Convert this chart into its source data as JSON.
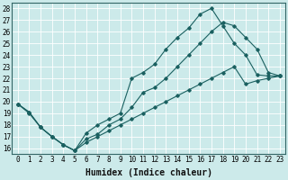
{
  "background_color": "#cceaea",
  "grid_color": "#ffffff",
  "line_color": "#1a6060",
  "xlabel": "Humidex (Indice chaleur)",
  "xlabel_fontsize": 7,
  "tick_fontsize": 5.5,
  "xlim": [
    -0.5,
    23.5
  ],
  "ylim": [
    15.5,
    28.5
  ],
  "xticks": [
    0,
    1,
    2,
    3,
    4,
    5,
    6,
    7,
    8,
    9,
    10,
    11,
    12,
    13,
    14,
    15,
    16,
    17,
    18,
    19,
    20,
    21,
    22,
    23
  ],
  "yticks": [
    16,
    17,
    18,
    19,
    20,
    21,
    22,
    23,
    24,
    25,
    26,
    27,
    28
  ],
  "line1_x": [
    0,
    1,
    2,
    3,
    4,
    5,
    6,
    7,
    8,
    9,
    10,
    11,
    12,
    13,
    14,
    15,
    16,
    17,
    18,
    19,
    20,
    21,
    22,
    23
  ],
  "line1_y": [
    19.8,
    19.1,
    17.8,
    17.0,
    16.3,
    15.8,
    17.3,
    18.0,
    18.5,
    19.0,
    22.0,
    22.5,
    23.2,
    24.5,
    25.5,
    26.3,
    27.5,
    28.0,
    26.5,
    25.0,
    24.0,
    22.3,
    22.2,
    22.2
  ],
  "line2_x": [
    0,
    1,
    2,
    3,
    4,
    5,
    6,
    7,
    8,
    9,
    10,
    11,
    12,
    13,
    14,
    15,
    16,
    17,
    18,
    19,
    20,
    21,
    22,
    23
  ],
  "line2_y": [
    19.8,
    19.1,
    17.8,
    17.0,
    16.3,
    15.8,
    16.8,
    17.2,
    18.0,
    18.5,
    19.5,
    20.8,
    21.2,
    22.0,
    23.0,
    24.0,
    25.0,
    26.0,
    26.8,
    26.5,
    25.5,
    24.5,
    22.5,
    22.2
  ],
  "line3_x": [
    0,
    1,
    2,
    3,
    4,
    5,
    6,
    7,
    8,
    9,
    10,
    11,
    12,
    13,
    14,
    15,
    16,
    17,
    18,
    19,
    20,
    21,
    22,
    23
  ],
  "line3_y": [
    19.8,
    19.0,
    17.8,
    17.0,
    16.3,
    15.8,
    16.5,
    17.0,
    17.5,
    18.0,
    18.5,
    19.0,
    19.5,
    20.0,
    20.5,
    21.0,
    21.5,
    22.0,
    22.5,
    23.0,
    21.5,
    21.8,
    22.0,
    22.2
  ]
}
